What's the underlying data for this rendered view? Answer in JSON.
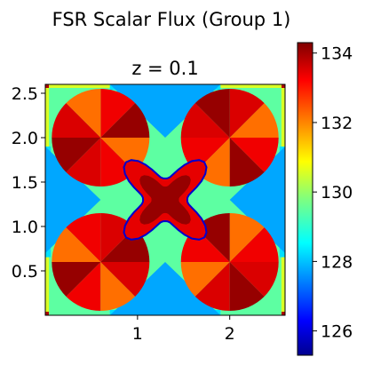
{
  "figure": {
    "suptitle": "FSR Scalar Flux (Group 1)"
  },
  "chart_data": {
    "type": "heatmap",
    "title": "z = 0.1",
    "xlabel": "",
    "ylabel": "",
    "xlim": [
      0.0,
      2.6
    ],
    "ylim": [
      0.0,
      2.6
    ],
    "x_ticks": [
      1,
      2
    ],
    "y_ticks": [
      0.5,
      1.0,
      1.5,
      2.0,
      2.5
    ],
    "x_tick_labels": [
      "1",
      "2"
    ],
    "y_tick_labels": [
      "0.5",
      "1.0",
      "1.5",
      "2.0",
      "2.5"
    ],
    "colorbar": {
      "min": 125.3,
      "max": 134.3,
      "ticks": [
        126,
        128,
        130,
        132,
        134
      ],
      "tick_labels": [
        "126",
        "128",
        "130",
        "132",
        "134"
      ],
      "colormap": "jet"
    },
    "regions": {
      "moderator_background": 129.5,
      "outer_edge": 130.6,
      "corner_pins": 133.9,
      "moderator_cross_arms": 128.4,
      "moderator_corner_triangles": 127.9,
      "fuel_pin_sectors_outer_high": 134.1,
      "fuel_pin_sectors_outer_mid": 133.3,
      "fuel_pin_sectors_outer_low": 132.2,
      "fuel_pin_sectors_inner": 133.5,
      "central_region_dark": 134.1,
      "central_region_light": 133.4,
      "central_boundary_ring": 126.0
    },
    "pins": [
      {
        "cx": 0.6,
        "cy": 2.0,
        "r": 0.53
      },
      {
        "cx": 2.0,
        "cy": 2.0,
        "r": 0.53
      },
      {
        "cx": 0.6,
        "cy": 0.6,
        "r": 0.53
      },
      {
        "cx": 2.0,
        "cy": 0.6,
        "r": 0.53
      }
    ]
  }
}
